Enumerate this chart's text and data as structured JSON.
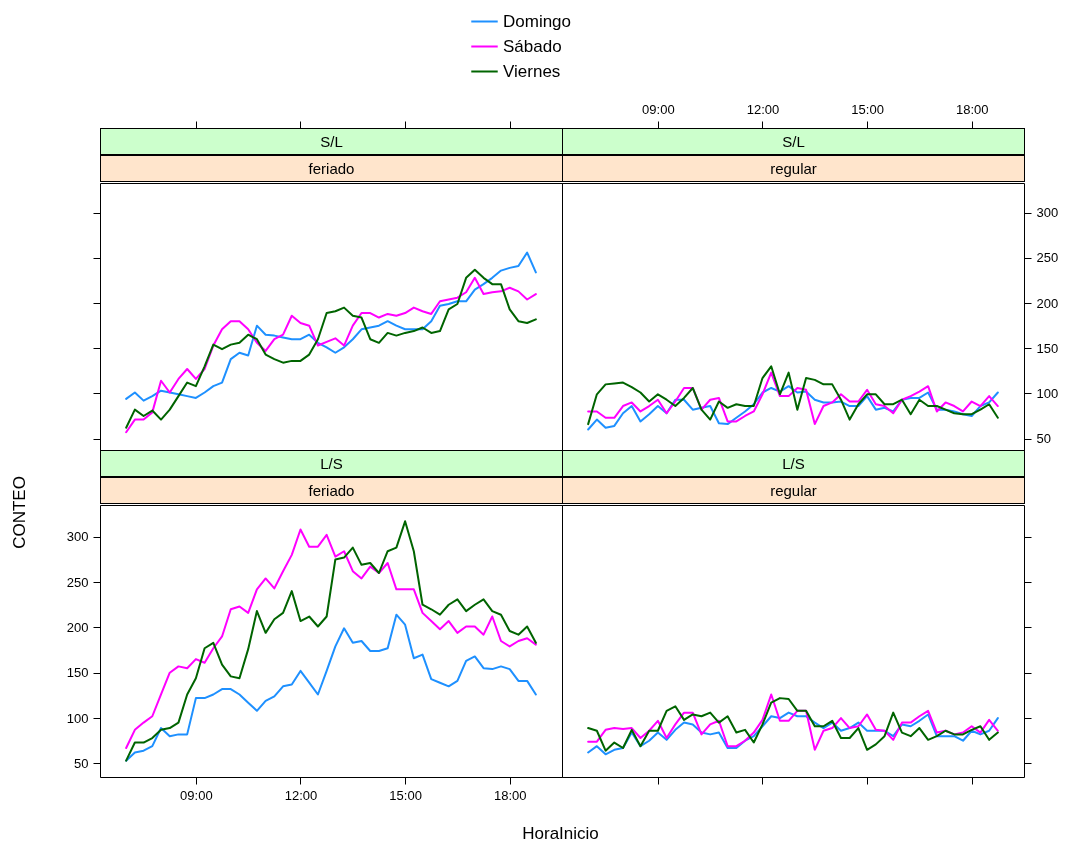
{
  "chart_data": [
    {
      "type": "line",
      "title": "S/L",
      "subtitle": "feriado",
      "x": [
        7,
        7.25,
        7.5,
        7.75,
        8,
        8.25,
        8.5,
        8.75,
        9,
        9.25,
        9.5,
        9.75,
        10,
        10.25,
        10.5,
        10.75,
        11,
        11.25,
        11.5,
        11.75,
        12,
        12.25,
        12.5,
        12.75,
        13,
        13.25,
        13.5,
        13.75,
        14,
        14.25,
        14.5,
        14.75,
        15,
        15.25,
        15.5,
        15.75,
        16,
        16.25,
        16.5,
        16.75,
        17,
        17.25,
        17.5,
        17.75,
        18,
        18.25,
        18.5,
        18.75
      ],
      "xlim": [
        6.25,
        19.5
      ],
      "xticks": [
        {
          "value": 9,
          "label": null
        },
        {
          "value": 12,
          "label": null
        },
        {
          "value": 15,
          "label": null
        },
        {
          "value": 18,
          "label": null
        }
      ],
      "ylim": [
        34,
        333
      ],
      "yticks": [
        50,
        100,
        150,
        200,
        250,
        300
      ],
      "tick_labels": false,
      "legend": "top",
      "series": [
        {
          "name": "Domingo",
          "color": "#1e90ff",
          "values": [
            94,
            101,
            92,
            97,
            103,
            101,
            99,
            97,
            95,
            101,
            108,
            112,
            138,
            145,
            142,
            175,
            165,
            164,
            162,
            160,
            160,
            165,
            156,
            151,
            145,
            151,
            160,
            171,
            173,
            175,
            180,
            175,
            171,
            171,
            171,
            180,
            197,
            199,
            202,
            202,
            215,
            221,
            228,
            236,
            239,
            241,
            256,
            234
          ]
        },
        {
          "name": "Sábado",
          "color": "#ff00ff",
          "values": [
            57,
            71,
            71,
            79,
            114,
            101,
            116,
            127,
            116,
            127,
            153,
            171,
            180,
            180,
            171,
            156,
            147,
            160,
            165,
            186,
            178,
            175,
            153,
            157,
            161,
            153,
            175,
            189,
            189,
            184,
            188,
            186,
            189,
            195,
            191,
            188,
            202,
            204,
            206,
            212,
            228,
            210,
            212,
            213,
            217,
            213,
            204,
            210
          ]
        },
        {
          "name": "Viernes",
          "color": "#006400",
          "values": [
            62,
            82,
            75,
            81,
            71,
            82,
            97,
            112,
            108,
            130,
            154,
            149,
            154,
            156,
            165,
            160,
            143,
            138,
            134,
            136,
            136,
            143,
            160,
            189,
            191,
            195,
            186,
            184,
            160,
            156,
            167,
            164,
            167,
            169,
            173,
            167,
            169,
            193,
            199,
            228,
            237,
            228,
            221,
            221,
            193,
            180,
            178,
            182
          ]
        }
      ]
    },
    {
      "type": "line",
      "title": "S/L",
      "subtitle": "regular",
      "x": [
        7,
        7.25,
        7.5,
        7.75,
        8,
        8.25,
        8.5,
        8.75,
        9,
        9.25,
        9.5,
        9.75,
        10,
        10.25,
        10.5,
        10.75,
        11,
        11.25,
        11.5,
        11.75,
        12,
        12.25,
        12.5,
        12.75,
        13,
        13.25,
        13.5,
        13.75,
        14,
        14.25,
        14.5,
        14.75,
        15,
        15.25,
        15.5,
        15.75,
        16,
        16.25,
        16.5,
        16.75,
        17,
        17.25,
        17.5,
        17.75,
        18,
        18.25,
        18.5,
        18.75
      ],
      "xlim": [
        6.25,
        19.5
      ],
      "xticks": [
        {
          "value": 9,
          "label": "09:00"
        },
        {
          "value": 12,
          "label": "12:00"
        },
        {
          "value": 15,
          "label": "15:00"
        },
        {
          "value": 18,
          "label": "18:00"
        }
      ],
      "ylim": [
        34,
        333
      ],
      "yticks": [
        50,
        100,
        150,
        200,
        250,
        300
      ],
      "series": [
        {
          "name": "Domingo",
          "color": "#1e90ff",
          "values": [
            60,
            71,
            62,
            64,
            78,
            86,
            69,
            77,
            86,
            78,
            93,
            93,
            82,
            84,
            86,
            67,
            66,
            73,
            80,
            88,
            101,
            106,
            102,
            108,
            101,
            102,
            93,
            90,
            90,
            91,
            86,
            86,
            97,
            82,
            84,
            80,
            93,
            95,
            95,
            101,
            82,
            82,
            80,
            77,
            75,
            86,
            90,
            101
          ]
        },
        {
          "name": "Sábado",
          "color": "#ff00ff",
          "values": [
            80,
            80,
            73,
            73,
            86,
            90,
            80,
            86,
            93,
            78,
            91,
            106,
            106,
            82,
            93,
            95,
            69,
            69,
            75,
            80,
            99,
            123,
            97,
            97,
            106,
            104,
            66,
            86,
            90,
            99,
            91,
            91,
            104,
            88,
            86,
            78,
            93,
            97,
            102,
            108,
            80,
            90,
            86,
            80,
            91,
            86,
            97,
            86
          ]
        },
        {
          "name": "Viernes",
          "color": "#006400",
          "values": [
            66,
            99,
            110,
            111,
            112,
            107,
            101,
            91,
            99,
            93,
            86,
            95,
            106,
            82,
            71,
            91,
            84,
            88,
            86,
            86,
            117,
            130,
            99,
            123,
            82,
            117,
            115,
            110,
            110,
            93,
            71,
            88,
            99,
            99,
            88,
            88,
            93,
            77,
            93,
            86,
            86,
            82,
            78,
            77,
            77,
            82,
            88,
            73
          ]
        }
      ]
    },
    {
      "type": "line",
      "title": "L/S",
      "subtitle": "feriado",
      "xlabel": "HoraInicio",
      "ylabel": "CONTEO",
      "x": [
        7,
        7.25,
        7.5,
        7.75,
        8,
        8.25,
        8.5,
        8.75,
        9,
        9.25,
        9.5,
        9.75,
        10,
        10.25,
        10.5,
        10.75,
        11,
        11.25,
        11.5,
        11.75,
        12,
        12.25,
        12.5,
        12.75,
        13,
        13.25,
        13.5,
        13.75,
        14,
        14.25,
        14.5,
        14.75,
        15,
        15.25,
        15.5,
        15.75,
        16,
        16.25,
        16.5,
        16.75,
        17,
        17.25,
        17.5,
        17.75,
        18,
        18.25,
        18.5,
        18.75
      ],
      "xlim": [
        6.25,
        19.5
      ],
      "xticks": [
        {
          "value": 9,
          "label": "09:00"
        },
        {
          "value": 12,
          "label": "12:00"
        },
        {
          "value": 15,
          "label": "15:00"
        },
        {
          "value": 18,
          "label": "18:00"
        }
      ],
      "ylim": [
        35,
        335
      ],
      "yticks": [
        50,
        100,
        150,
        200,
        250,
        300
      ],
      "series": [
        {
          "name": "Domingo",
          "color": "#1e90ff",
          "values": [
            53,
            62,
            64,
            69,
            89,
            80,
            82,
            82,
            122,
            122,
            126,
            132,
            132,
            126,
            117,
            108,
            119,
            124,
            135,
            137,
            152,
            139,
            126,
            152,
            179,
            199,
            183,
            185,
            174,
            174,
            177,
            214,
            203,
            166,
            170,
            143,
            139,
            135,
            141,
            163,
            168,
            155,
            154,
            157,
            154,
            141,
            141,
            126
          ]
        },
        {
          "name": "Sábado",
          "color": "#ff00ff",
          "values": [
            67,
            87,
            95,
            102,
            126,
            150,
            157,
            155,
            165,
            161,
            177,
            190,
            220,
            223,
            216,
            242,
            254,
            243,
            262,
            280,
            308,
            289,
            289,
            302,
            278,
            284,
            262,
            254,
            267,
            260,
            271,
            242,
            242,
            242,
            216,
            207,
            198,
            207,
            194,
            201,
            201,
            192,
            212,
            185,
            179,
            185,
            188,
            181
          ]
        },
        {
          "name": "Viernes",
          "color": "#006400",
          "values": [
            53,
            73,
            73,
            78,
            87,
            89,
            95,
            126,
            144,
            177,
            183,
            159,
            146,
            144,
            176,
            218,
            194,
            209,
            216,
            240,
            207,
            212,
            201,
            212,
            275,
            277,
            288,
            269,
            271,
            260,
            284,
            288,
            317,
            284,
            225,
            220,
            214,
            225,
            231,
            218,
            225,
            231,
            218,
            214,
            196,
            192,
            201,
            183
          ]
        }
      ]
    },
    {
      "type": "line",
      "title": "L/S",
      "subtitle": "regular",
      "x": [
        7,
        7.25,
        7.5,
        7.75,
        8,
        8.25,
        8.5,
        8.75,
        9,
        9.25,
        9.5,
        9.75,
        10,
        10.25,
        10.5,
        10.75,
        11,
        11.25,
        11.5,
        11.75,
        12,
        12.25,
        12.5,
        12.75,
        13,
        13.25,
        13.5,
        13.75,
        14,
        14.25,
        14.5,
        14.75,
        15,
        15.25,
        15.5,
        15.75,
        16,
        16.25,
        16.5,
        16.75,
        17,
        17.25,
        17.5,
        17.75,
        18,
        18.25,
        18.5,
        18.75
      ],
      "xlim": [
        6.25,
        19.5
      ],
      "xticks": [
        {
          "value": 9,
          "label": null
        },
        {
          "value": 12,
          "label": null
        },
        {
          "value": 15,
          "label": null
        },
        {
          "value": 18,
          "label": null
        }
      ],
      "ylim": [
        35,
        335
      ],
      "yticks": [
        50,
        100,
        150,
        200,
        250,
        300
      ],
      "tick_labels": false,
      "series": [
        {
          "name": "Domingo",
          "color": "#1e90ff",
          "values": [
            62,
            69,
            60,
            65,
            67,
            84,
            69,
            75,
            84,
            76,
            87,
            95,
            93,
            84,
            82,
            84,
            67,
            67,
            75,
            80,
            91,
            102,
            100,
            106,
            102,
            102,
            95,
            89,
            95,
            86,
            89,
            95,
            86,
            86,
            86,
            80,
            93,
            91,
            97,
            104,
            80,
            80,
            80,
            75,
            86,
            82,
            86,
            100
          ]
        },
        {
          "name": "Sábado",
          "color": "#ff00ff",
          "values": [
            74,
            74,
            87,
            89,
            88,
            89,
            78,
            86,
            97,
            78,
            93,
            106,
            106,
            82,
            93,
            97,
            69,
            69,
            75,
            84,
            98,
            126,
            97,
            97,
            108,
            108,
            65,
            86,
            89,
            100,
            89,
            91,
            104,
            87,
            86,
            76,
            95,
            95,
            102,
            108,
            84,
            86,
            82,
            84,
            91,
            84,
            98,
            86
          ]
        },
        {
          "name": "Viernes",
          "color": "#006400",
          "values": [
            89,
            86,
            64,
            73,
            67,
            87,
            69,
            86,
            86,
            108,
            113,
            98,
            104,
            102,
            106,
            95,
            102,
            84,
            87,
            73,
            93,
            117,
            122,
            121,
            108,
            108,
            91,
            91,
            97,
            78,
            78,
            89,
            65,
            71,
            80,
            106,
            84,
            80,
            89,
            76,
            80,
            86,
            82,
            82,
            87,
            91,
            76,
            84
          ]
        }
      ]
    }
  ]
}
